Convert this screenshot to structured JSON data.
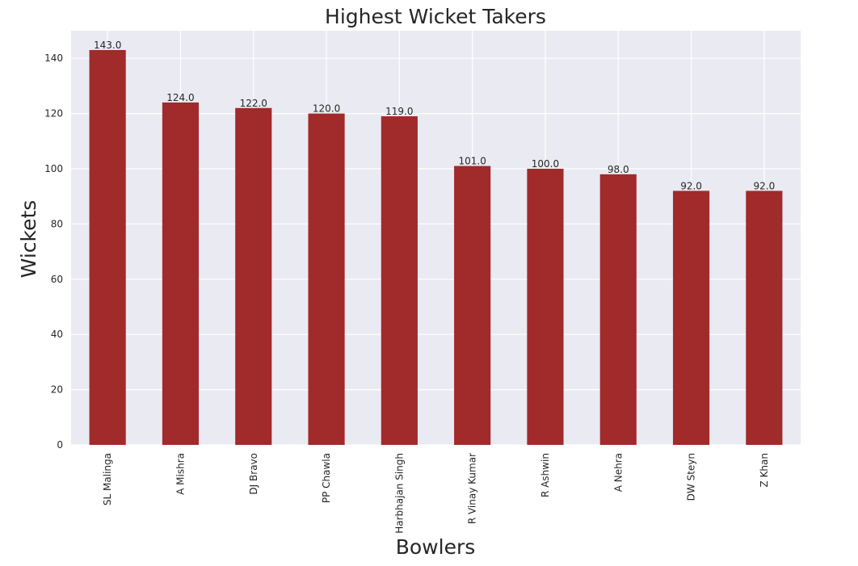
{
  "chart_data": {
    "type": "bar",
    "title": "Highest Wicket Takers",
    "xlabel": "Bowlers",
    "ylabel": "Wickets",
    "categories": [
      "SL Malinga",
      "A Mishra",
      "DJ Bravo",
      "PP Chawla",
      "Harbhajan Singh",
      "R Vinay Kumar",
      "R Ashwin",
      "A Nehra",
      "DW Steyn",
      "Z Khan"
    ],
    "values": [
      143,
      124,
      122,
      120,
      119,
      101,
      100,
      98,
      92,
      92
    ],
    "data_labels": [
      "143.0",
      "124.0",
      "122.0",
      "120.0",
      "119.0",
      "101.0",
      "100.0",
      "98.0",
      "92.0",
      "92.0"
    ],
    "ylim": [
      0,
      150
    ],
    "yticks": [
      0,
      20,
      40,
      60,
      80,
      100,
      120,
      140
    ],
    "grid": true,
    "bar_color": "#a12a2a",
    "background_color": "#eaeaf2",
    "grid_color": "#ffffff"
  }
}
